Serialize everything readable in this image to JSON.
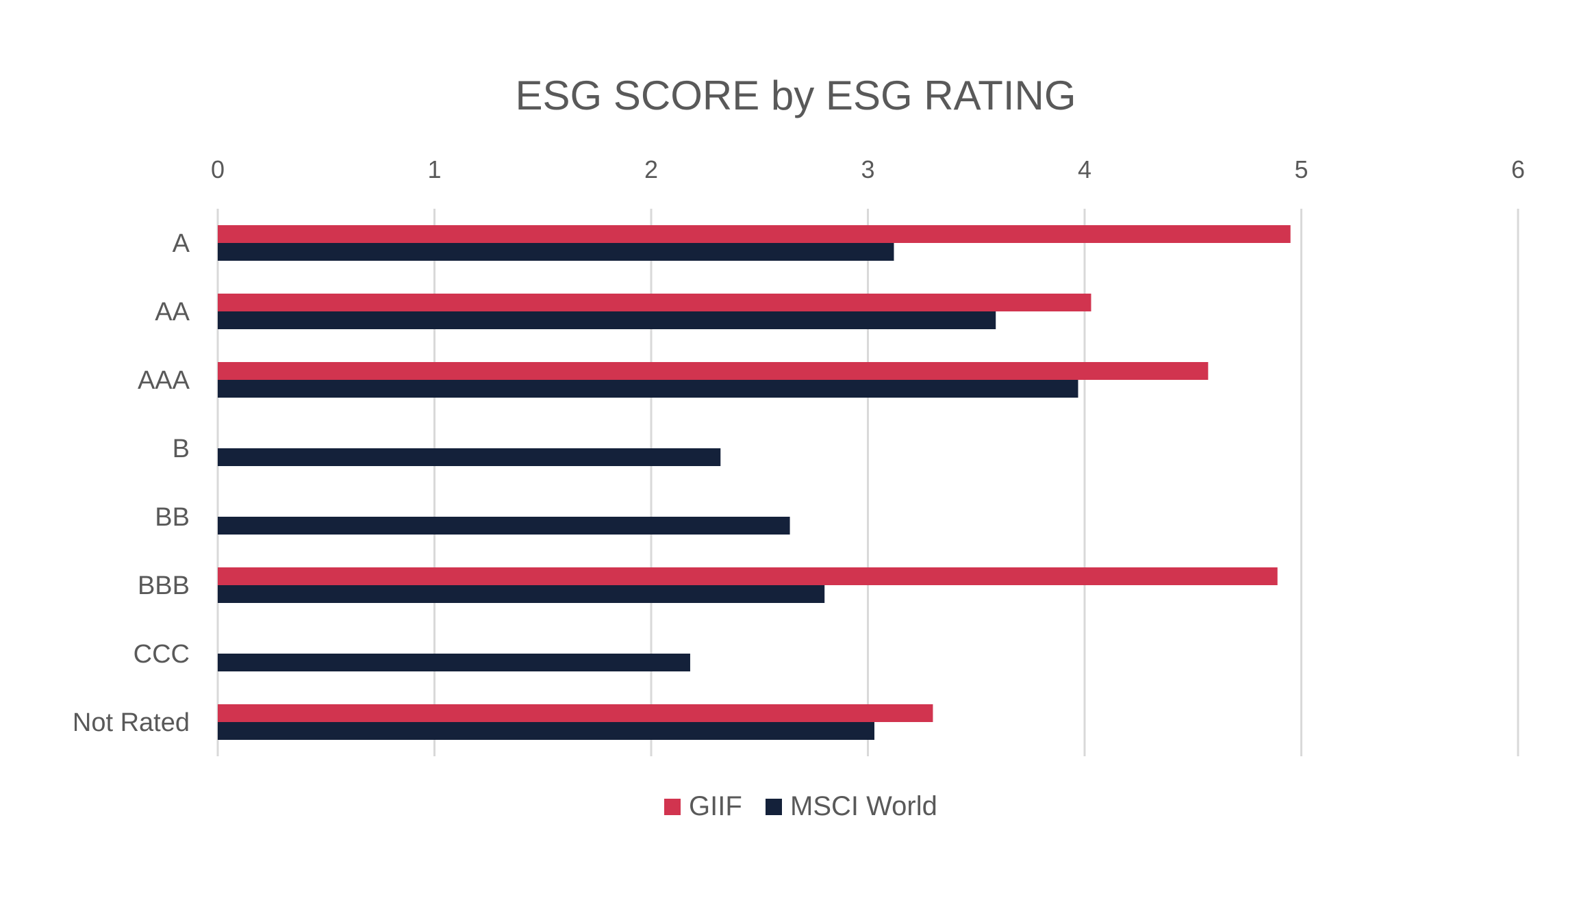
{
  "chart_data": {
    "type": "bar",
    "orientation": "horizontal",
    "title": "ESG SCORE by ESG RATING",
    "xlabel": "",
    "ylabel": "",
    "xlim": [
      0,
      6
    ],
    "x_ticks": [
      0,
      1,
      2,
      3,
      4,
      5,
      6
    ],
    "x_axis_position": "top",
    "grid": true,
    "legend_position": "bottom",
    "categories": [
      "A",
      "AA",
      "AAA",
      "B",
      "BB",
      "BBB",
      "CCC",
      "Not Rated"
    ],
    "series": [
      {
        "name": "GIIF",
        "color": "#d1344f",
        "values": [
          4.95,
          4.03,
          4.57,
          null,
          null,
          4.89,
          null,
          3.3
        ]
      },
      {
        "name": "MSCI World",
        "color": "#14213a",
        "values": [
          3.12,
          3.59,
          3.97,
          2.32,
          2.64,
          2.8,
          2.18,
          3.03
        ]
      }
    ]
  }
}
